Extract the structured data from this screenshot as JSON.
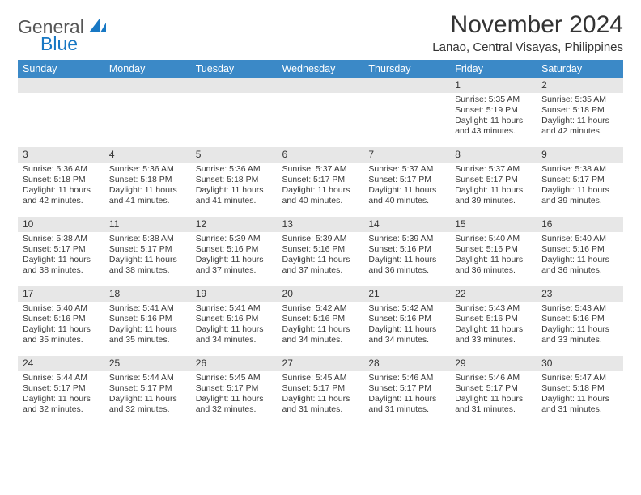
{
  "brand": {
    "part1": "General",
    "part2": "Blue"
  },
  "title": "November 2024",
  "location": "Lanao, Central Visayas, Philippines",
  "colors": {
    "header_bg": "#3b89c7",
    "header_text": "#ffffff",
    "daynum_bg": "#e7e7e7",
    "page_bg": "#ffffff",
    "text": "#333333",
    "brand_gray": "#565656",
    "brand_blue": "#1878c4"
  },
  "day_headers": [
    "Sunday",
    "Monday",
    "Tuesday",
    "Wednesday",
    "Thursday",
    "Friday",
    "Saturday"
  ],
  "weeks": [
    [
      null,
      null,
      null,
      null,
      null,
      {
        "n": "1",
        "sr": "5:35 AM",
        "ss": "5:19 PM",
        "dl": "11 hours and 43 minutes."
      },
      {
        "n": "2",
        "sr": "5:35 AM",
        "ss": "5:18 PM",
        "dl": "11 hours and 42 minutes."
      }
    ],
    [
      {
        "n": "3",
        "sr": "5:36 AM",
        "ss": "5:18 PM",
        "dl": "11 hours and 42 minutes."
      },
      {
        "n": "4",
        "sr": "5:36 AM",
        "ss": "5:18 PM",
        "dl": "11 hours and 41 minutes."
      },
      {
        "n": "5",
        "sr": "5:36 AM",
        "ss": "5:18 PM",
        "dl": "11 hours and 41 minutes."
      },
      {
        "n": "6",
        "sr": "5:37 AM",
        "ss": "5:17 PM",
        "dl": "11 hours and 40 minutes."
      },
      {
        "n": "7",
        "sr": "5:37 AM",
        "ss": "5:17 PM",
        "dl": "11 hours and 40 minutes."
      },
      {
        "n": "8",
        "sr": "5:37 AM",
        "ss": "5:17 PM",
        "dl": "11 hours and 39 minutes."
      },
      {
        "n": "9",
        "sr": "5:38 AM",
        "ss": "5:17 PM",
        "dl": "11 hours and 39 minutes."
      }
    ],
    [
      {
        "n": "10",
        "sr": "5:38 AM",
        "ss": "5:17 PM",
        "dl": "11 hours and 38 minutes."
      },
      {
        "n": "11",
        "sr": "5:38 AM",
        "ss": "5:17 PM",
        "dl": "11 hours and 38 minutes."
      },
      {
        "n": "12",
        "sr": "5:39 AM",
        "ss": "5:16 PM",
        "dl": "11 hours and 37 minutes."
      },
      {
        "n": "13",
        "sr": "5:39 AM",
        "ss": "5:16 PM",
        "dl": "11 hours and 37 minutes."
      },
      {
        "n": "14",
        "sr": "5:39 AM",
        "ss": "5:16 PM",
        "dl": "11 hours and 36 minutes."
      },
      {
        "n": "15",
        "sr": "5:40 AM",
        "ss": "5:16 PM",
        "dl": "11 hours and 36 minutes."
      },
      {
        "n": "16",
        "sr": "5:40 AM",
        "ss": "5:16 PM",
        "dl": "11 hours and 36 minutes."
      }
    ],
    [
      {
        "n": "17",
        "sr": "5:40 AM",
        "ss": "5:16 PM",
        "dl": "11 hours and 35 minutes."
      },
      {
        "n": "18",
        "sr": "5:41 AM",
        "ss": "5:16 PM",
        "dl": "11 hours and 35 minutes."
      },
      {
        "n": "19",
        "sr": "5:41 AM",
        "ss": "5:16 PM",
        "dl": "11 hours and 34 minutes."
      },
      {
        "n": "20",
        "sr": "5:42 AM",
        "ss": "5:16 PM",
        "dl": "11 hours and 34 minutes."
      },
      {
        "n": "21",
        "sr": "5:42 AM",
        "ss": "5:16 PM",
        "dl": "11 hours and 34 minutes."
      },
      {
        "n": "22",
        "sr": "5:43 AM",
        "ss": "5:16 PM",
        "dl": "11 hours and 33 minutes."
      },
      {
        "n": "23",
        "sr": "5:43 AM",
        "ss": "5:16 PM",
        "dl": "11 hours and 33 minutes."
      }
    ],
    [
      {
        "n": "24",
        "sr": "5:44 AM",
        "ss": "5:17 PM",
        "dl": "11 hours and 32 minutes."
      },
      {
        "n": "25",
        "sr": "5:44 AM",
        "ss": "5:17 PM",
        "dl": "11 hours and 32 minutes."
      },
      {
        "n": "26",
        "sr": "5:45 AM",
        "ss": "5:17 PM",
        "dl": "11 hours and 32 minutes."
      },
      {
        "n": "27",
        "sr": "5:45 AM",
        "ss": "5:17 PM",
        "dl": "11 hours and 31 minutes."
      },
      {
        "n": "28",
        "sr": "5:46 AM",
        "ss": "5:17 PM",
        "dl": "11 hours and 31 minutes."
      },
      {
        "n": "29",
        "sr": "5:46 AM",
        "ss": "5:17 PM",
        "dl": "11 hours and 31 minutes."
      },
      {
        "n": "30",
        "sr": "5:47 AM",
        "ss": "5:18 PM",
        "dl": "11 hours and 31 minutes."
      }
    ]
  ],
  "labels": {
    "sunrise": "Sunrise: ",
    "sunset": "Sunset: ",
    "daylight": "Daylight: "
  }
}
